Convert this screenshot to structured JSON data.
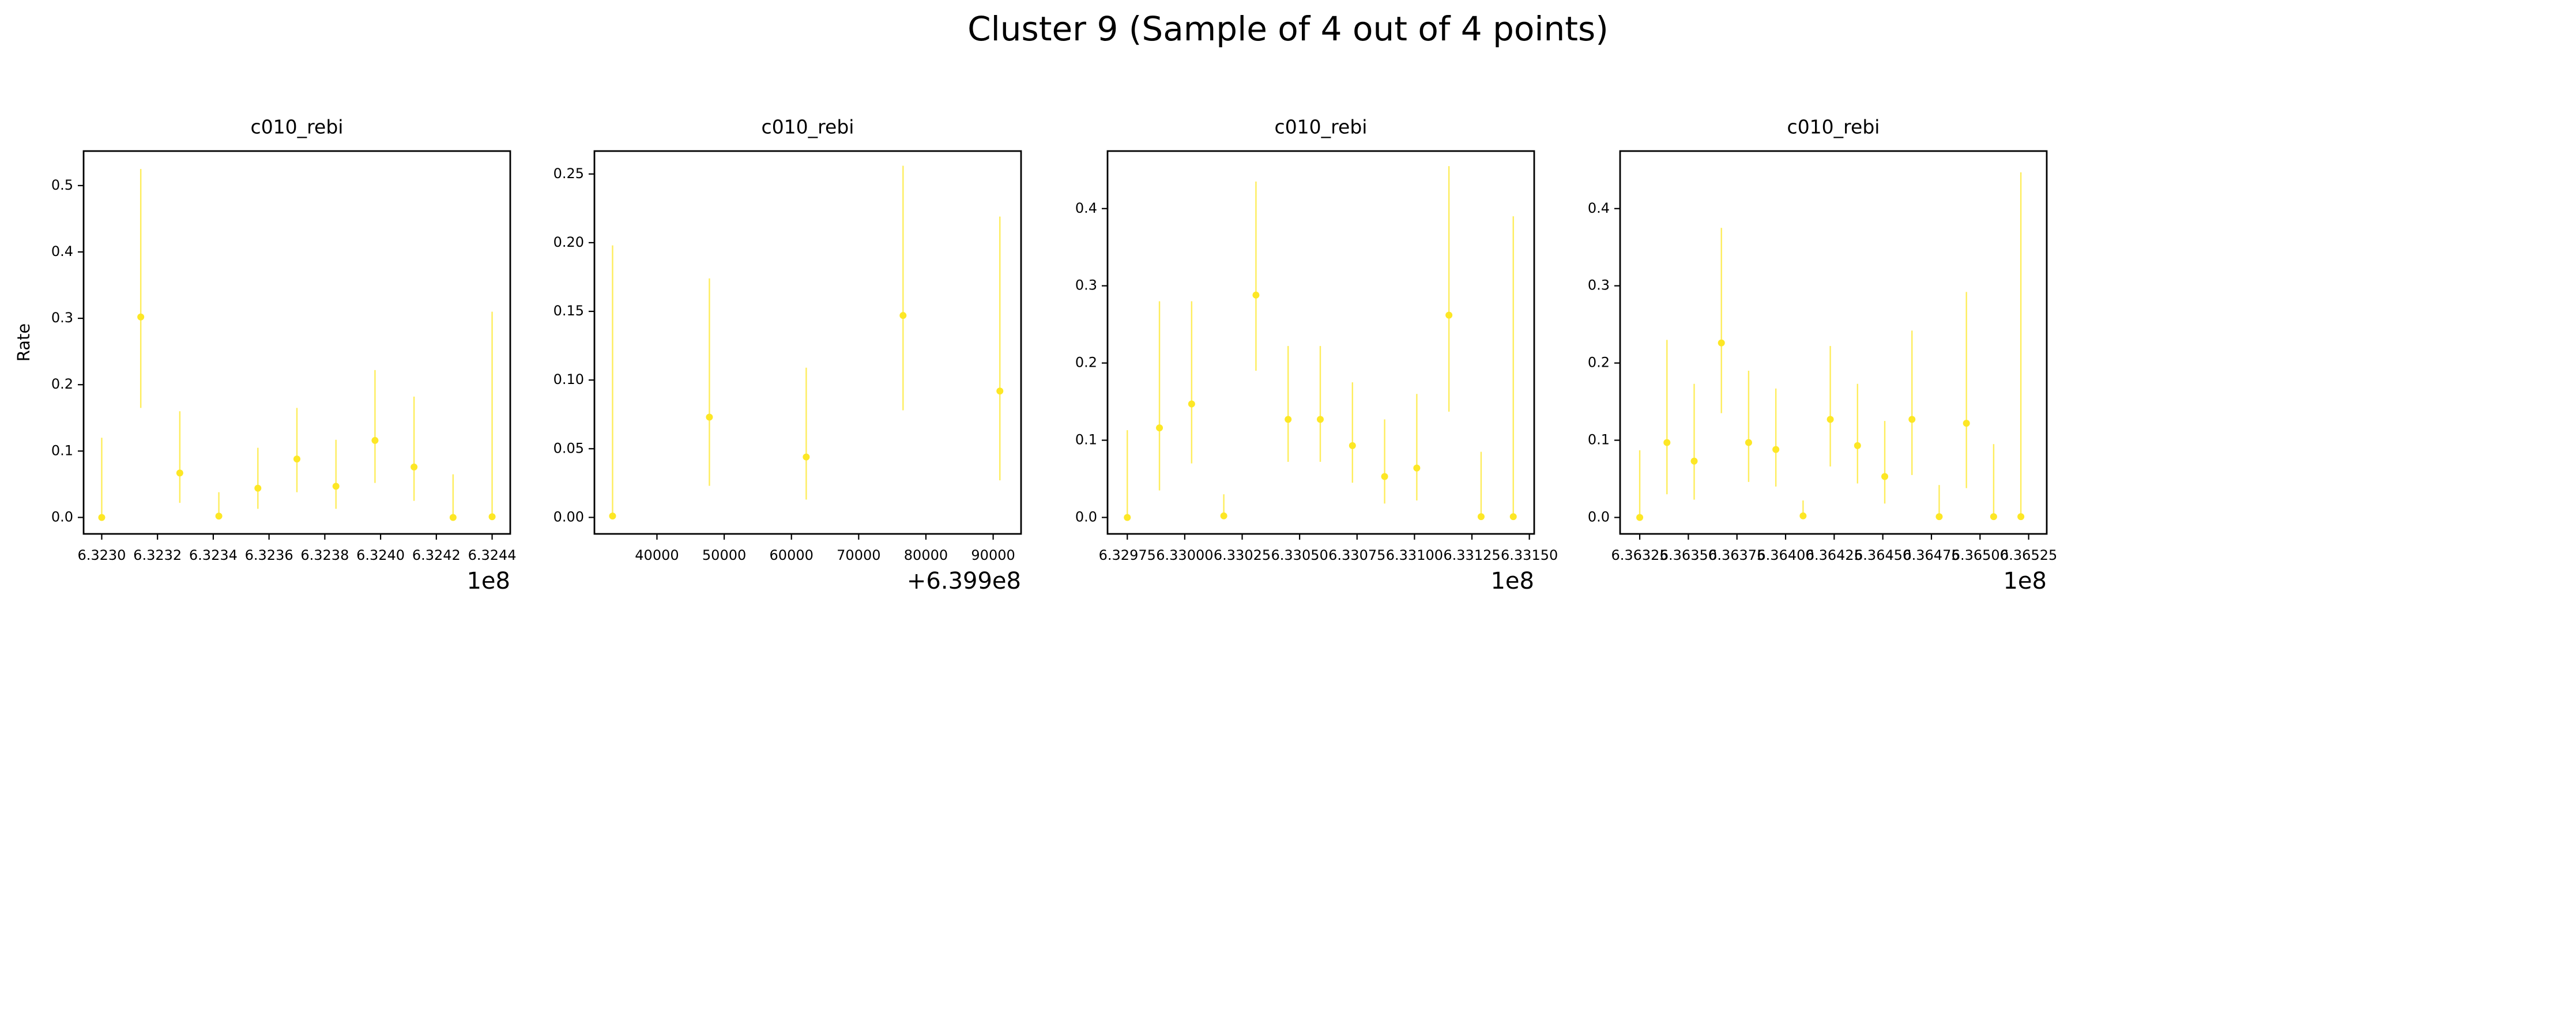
{
  "title": "Cluster 9 (Sample of 4 out of 4 points)",
  "chart_data": [
    {
      "type": "scatter",
      "title": "c010_rebi",
      "ylabel": "Rate",
      "color": "#fde725",
      "x_offset_label": "1e8",
      "x": [
        632300000,
        632314000,
        632328000,
        632342000,
        632356000,
        632370000,
        632384000,
        632398000,
        632412000,
        632426000,
        632440000
      ],
      "values": [
        0,
        0.302,
        0.067,
        0.002,
        0.044,
        0.088,
        0.047,
        0.116,
        0.076,
        0,
        0.001
      ],
      "y_lower": [
        0,
        0.165,
        0.022,
        0,
        0.013,
        0.038,
        0.013,
        0.052,
        0.025,
        0,
        0
      ],
      "y_upper": [
        0.12,
        0.525,
        0.16,
        0.038,
        0.105,
        0.165,
        0.117,
        0.222,
        0.182,
        0.065,
        0.31
      ],
      "xlim": [
        632293500,
        632446500
      ],
      "ylim": [
        -0.0248,
        0.552
      ],
      "xticks": [
        {
          "value": 632300000,
          "label": "6.3230"
        },
        {
          "value": 632320000,
          "label": "6.3232"
        },
        {
          "value": 632340000,
          "label": "6.3234"
        },
        {
          "value": 632360000,
          "label": "6.3236"
        },
        {
          "value": 632380000,
          "label": "6.3238"
        },
        {
          "value": 632400000,
          "label": "6.3240"
        },
        {
          "value": 632420000,
          "label": "6.3242"
        },
        {
          "value": 632440000,
          "label": "6.3244"
        }
      ],
      "yticks": [
        {
          "value": 0,
          "label": "0.0"
        },
        {
          "value": 0.1,
          "label": "0.1"
        },
        {
          "value": 0.2,
          "label": "0.2"
        },
        {
          "value": 0.3,
          "label": "0.3"
        },
        {
          "value": 0.4,
          "label": "0.4"
        },
        {
          "value": 0.5,
          "label": "0.5"
        }
      ]
    },
    {
      "type": "scatter",
      "title": "c010_rebi",
      "color": "#fde725",
      "x_offset_label": "+6.399e8",
      "x": [
        639933400,
        639947800,
        639962200,
        639976600,
        639991000
      ],
      "values": [
        0.001,
        0.073,
        0.044,
        0.147,
        0.092
      ],
      "y_lower": [
        0,
        0.023,
        0.013,
        0.078,
        0.027
      ],
      "y_upper": [
        0.198,
        0.174,
        0.109,
        0.256,
        0.219
      ],
      "xlim": [
        639930700,
        639994150
      ],
      "ylim": [
        -0.012,
        0.2667
      ],
      "xticks": [
        {
          "value": 639940000,
          "label": "40000"
        },
        {
          "value": 639950000,
          "label": "50000"
        },
        {
          "value": 639960000,
          "label": "60000"
        },
        {
          "value": 639970000,
          "label": "70000"
        },
        {
          "value": 639980000,
          "label": "80000"
        },
        {
          "value": 639990000,
          "label": "90000"
        }
      ],
      "yticks": [
        {
          "value": 0,
          "label": "0.00"
        },
        {
          "value": 0.05,
          "label": "0.05"
        },
        {
          "value": 0.1,
          "label": "0.10"
        },
        {
          "value": 0.15,
          "label": "0.15"
        },
        {
          "value": 0.2,
          "label": "0.20"
        },
        {
          "value": 0.25,
          "label": "0.25"
        }
      ]
    },
    {
      "type": "scatter",
      "title": "c010_rebi",
      "color": "#fde725",
      "x_offset_label": "1e8",
      "x": [
        632975000,
        632989000,
        633003000,
        633017000,
        633031000,
        633045000,
        633059000,
        633073000,
        633087000,
        633101000,
        633115000,
        633129000,
        633143000
      ],
      "values": [
        0,
        0.116,
        0.147,
        0.002,
        0.288,
        0.127,
        0.127,
        0.093,
        0.053,
        0.064,
        0.262,
        0.001,
        0.001
      ],
      "y_lower": [
        0,
        0.035,
        0.07,
        0,
        0.19,
        0.072,
        0.072,
        0.045,
        0.018,
        0.022,
        0.137,
        0,
        0
      ],
      "y_upper": [
        0.113,
        0.28,
        0.28,
        0.03,
        0.435,
        0.222,
        0.222,
        0.175,
        0.127,
        0.16,
        0.455,
        0.085,
        0.39
      ],
      "xlim": [
        632966400,
        633152100
      ],
      "ylim": [
        -0.0213,
        0.4745
      ],
      "xticks": [
        {
          "value": 632975000,
          "label": "6.32975"
        },
        {
          "value": 633000000,
          "label": "6.33000"
        },
        {
          "value": 633025000,
          "label": "6.33025"
        },
        {
          "value": 633050000,
          "label": "6.33050"
        },
        {
          "value": 633075000,
          "label": "6.33075"
        },
        {
          "value": 633100000,
          "label": "6.33100"
        },
        {
          "value": 633125000,
          "label": "6.33125"
        },
        {
          "value": 633150000,
          "label": "6.33150"
        }
      ],
      "yticks": [
        {
          "value": 0,
          "label": "0.0"
        },
        {
          "value": 0.1,
          "label": "0.1"
        },
        {
          "value": 0.2,
          "label": "0.2"
        },
        {
          "value": 0.3,
          "label": "0.3"
        },
        {
          "value": 0.4,
          "label": "0.4"
        }
      ]
    },
    {
      "type": "scatter",
      "title": "c010_rebi",
      "color": "#fde725",
      "x_offset_label": "1e8",
      "x": [
        636325000,
        636339000,
        636353000,
        636367000,
        636381000,
        636395000,
        636409000,
        636423000,
        636437000,
        636451000,
        636465000,
        636479000,
        636493000,
        636507000,
        636521000
      ],
      "values": [
        0,
        0.097,
        0.073,
        0.226,
        0.097,
        0.088,
        0.002,
        0.127,
        0.093,
        0.053,
        0.127,
        0.001,
        0.122,
        0.001,
        0.001
      ],
      "y_lower": [
        0,
        0.03,
        0.023,
        0.135,
        0.046,
        0.04,
        0,
        0.066,
        0.044,
        0.018,
        0.055,
        0,
        0.038,
        0,
        0
      ],
      "y_upper": [
        0.087,
        0.23,
        0.173,
        0.375,
        0.19,
        0.167,
        0.022,
        0.222,
        0.173,
        0.125,
        0.242,
        0.042,
        0.292,
        0.095,
        0.447
      ],
      "xlim": [
        636314900,
        636534300
      ],
      "ylim": [
        -0.0213,
        0.4745
      ],
      "xticks": [
        {
          "value": 636325000,
          "label": "6.36325"
        },
        {
          "value": 636350000,
          "label": "6.36350"
        },
        {
          "value": 636375000,
          "label": "6.36375"
        },
        {
          "value": 636400000,
          "label": "6.36400"
        },
        {
          "value": 636425000,
          "label": "6.36425"
        },
        {
          "value": 636450000,
          "label": "6.36450"
        },
        {
          "value": 636475000,
          "label": "6.36475"
        },
        {
          "value": 636500000,
          "label": "6.36500"
        },
        {
          "value": 636525000,
          "label": "6.36525"
        }
      ],
      "yticks": [
        {
          "value": 0,
          "label": "0.0"
        },
        {
          "value": 0.1,
          "label": "0.1"
        },
        {
          "value": 0.2,
          "label": "0.2"
        },
        {
          "value": 0.3,
          "label": "0.3"
        },
        {
          "value": 0.4,
          "label": "0.4"
        }
      ]
    }
  ]
}
